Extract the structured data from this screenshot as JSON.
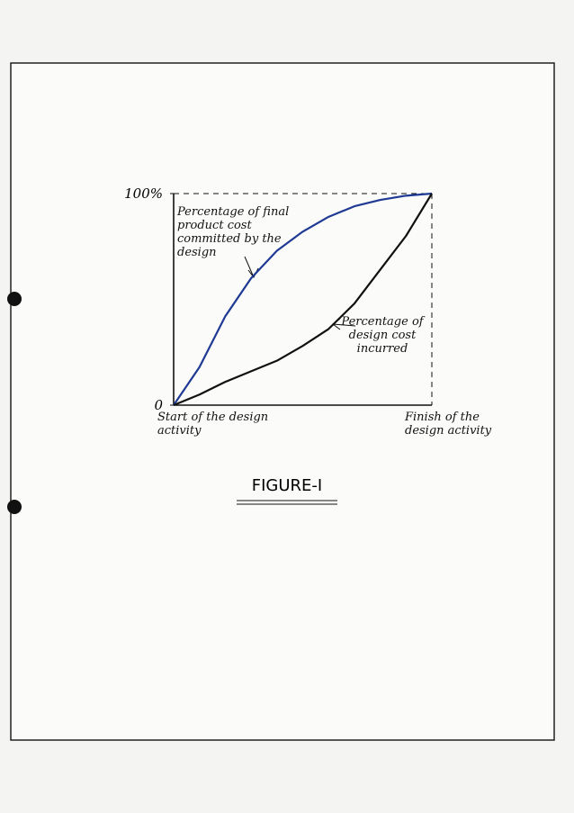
{
  "chart_data": {
    "type": "line",
    "title": "FIGURE-I",
    "categories": [
      "Start of the design activity",
      null,
      null,
      null,
      null,
      null,
      null,
      null,
      null,
      null,
      "Finish of the design activity"
    ],
    "series": [
      {
        "name": "Percentage of final product cost committed by the design",
        "color": "#1f3a93",
        "values": [
          0,
          18,
          42,
          60,
          73,
          82,
          89,
          94,
          97,
          99,
          100
        ]
      },
      {
        "name": "Percentage of design cost incurred",
        "color": "#111111",
        "values": [
          0,
          5,
          11,
          16,
          21,
          28,
          36,
          48,
          64,
          80,
          100
        ]
      }
    ],
    "ylim": [
      0,
      100
    ],
    "yticks": [
      0,
      {
        "value": 100,
        "label": "100%"
      }
    ]
  }
}
